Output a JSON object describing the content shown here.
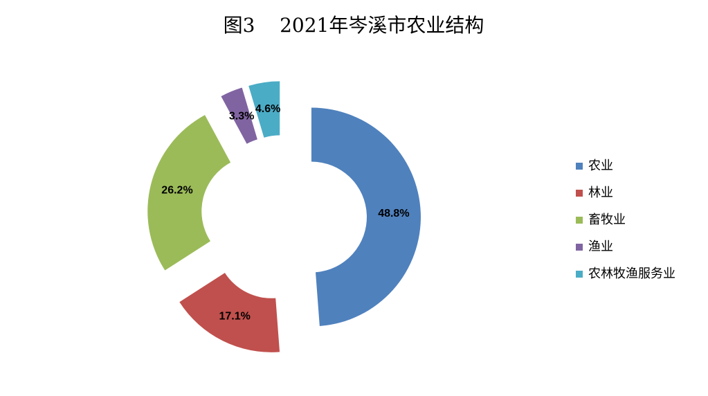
{
  "chart_data": {
    "type": "donut",
    "title": "图3    2021年岑溪市农业结构",
    "categories": [
      "农业",
      "林业",
      "畜牧业",
      "渔业",
      "农林牧渔服务业"
    ],
    "values": [
      48.8,
      17.1,
      26.2,
      3.3,
      4.6
    ],
    "value_labels": [
      "48.8%",
      "17.1%",
      "26.2%",
      "3.3%",
      "4.6%"
    ],
    "colors": [
      "#4f81bd",
      "#c0504d",
      "#9bbb59",
      "#8064a2",
      "#4bacc6"
    ],
    "legend": "right"
  }
}
